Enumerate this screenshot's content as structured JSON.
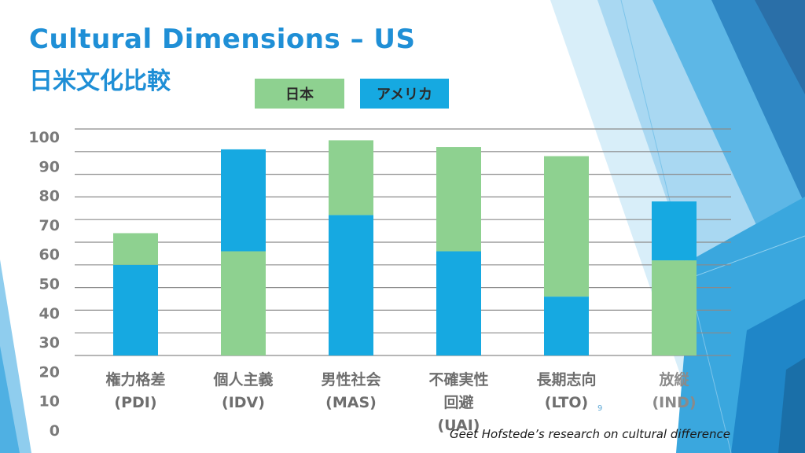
{
  "slide": {
    "title_line1": "Cultural Dimensions – US",
    "title_line2": "日米文化比較",
    "footnote": "Geet Hofstede’s research on cultural difference",
    "page_number": "9"
  },
  "legend": [
    {
      "label": "日本",
      "color": "#8ed190"
    },
    {
      "label": "アメリカ",
      "color": "#16a9e1"
    }
  ],
  "chart_data": {
    "type": "bar",
    "stacked": true,
    "categories": [
      {
        "label_lines": [
          "権力格差",
          "(PDI)"
        ]
      },
      {
        "label_lines": [
          "個人主義",
          "(IDV)"
        ]
      },
      {
        "label_lines": [
          "男性社会",
          "(MAS)"
        ]
      },
      {
        "label_lines": [
          "不確実性",
          "回避",
          "(UAI)"
        ]
      },
      {
        "label_lines": [
          "長期志向",
          "(LTO)"
        ]
      },
      {
        "label_lines": [
          "放縦",
          "(IND)"
        ]
      }
    ],
    "y_ticks": [
      "100",
      "90",
      "80",
      "70",
      "60",
      "50",
      "40",
      "30",
      "20",
      "10",
      "0"
    ],
    "ylim": [
      0,
      100
    ],
    "segments": [
      {
        "category": 0,
        "bottom": {
          "series": "アメリカ",
          "value": 40
        },
        "top": {
          "series": "日本",
          "value": 54
        }
      },
      {
        "category": 1,
        "bottom": {
          "series": "日本",
          "value": 46
        },
        "top": {
          "series": "アメリカ",
          "value": 91
        }
      },
      {
        "category": 2,
        "bottom": {
          "series": "アメリカ",
          "value": 62
        },
        "top": {
          "series": "日本",
          "value": 95
        }
      },
      {
        "category": 3,
        "bottom": {
          "series": "アメリカ",
          "value": 46
        },
        "top": {
          "series": "日本",
          "value": 92
        }
      },
      {
        "category": 4,
        "bottom": {
          "series": "アメリカ",
          "value": 26
        },
        "top": {
          "series": "日本",
          "value": 88
        }
      },
      {
        "category": 5,
        "bottom": {
          "series": "日本",
          "value": 42
        },
        "top": {
          "series": "アメリカ",
          "value": 68
        }
      }
    ],
    "grid": true,
    "colors": {
      "日本": "#8ed190",
      "アメリカ": "#16a9e1",
      "grid": "#8a8a8a"
    }
  }
}
